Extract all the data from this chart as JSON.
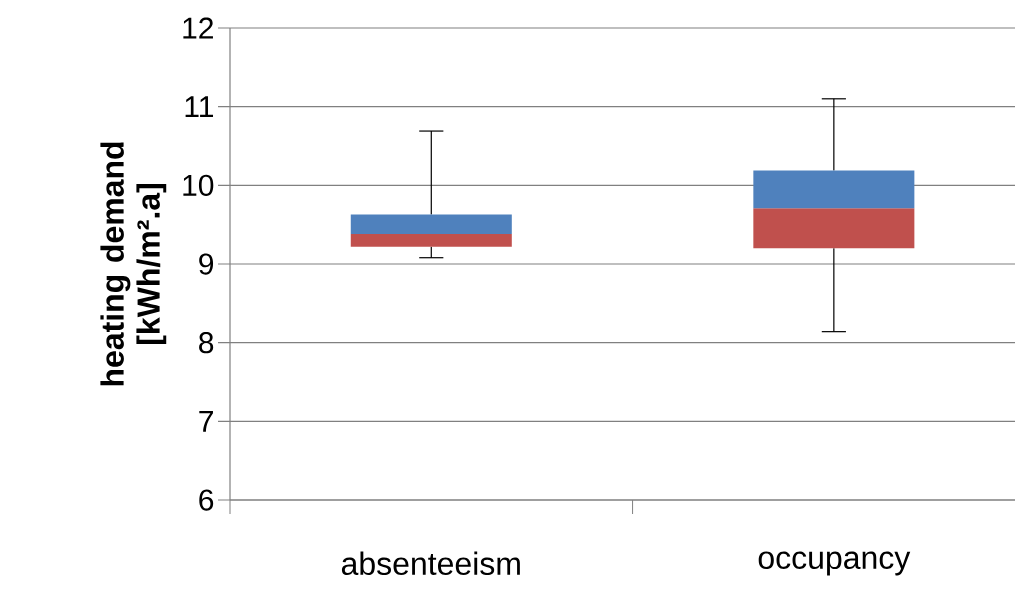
{
  "chart_data": {
    "type": "box",
    "ylabel": "heating demand [kWh/m².a]",
    "categories": [
      "absenteeism",
      "occupancy"
    ],
    "boxes": [
      {
        "low": 9.08,
        "q1": 9.22,
        "median": 9.38,
        "q3": 9.63,
        "high": 10.69
      },
      {
        "low": 8.14,
        "q1": 9.2,
        "median": 9.71,
        "q3": 10.19,
        "high": 11.1
      }
    ],
    "ylim": [
      6,
      12
    ],
    "yticks": [
      6,
      7,
      8,
      9,
      10,
      11,
      12
    ],
    "grid": "y"
  }
}
